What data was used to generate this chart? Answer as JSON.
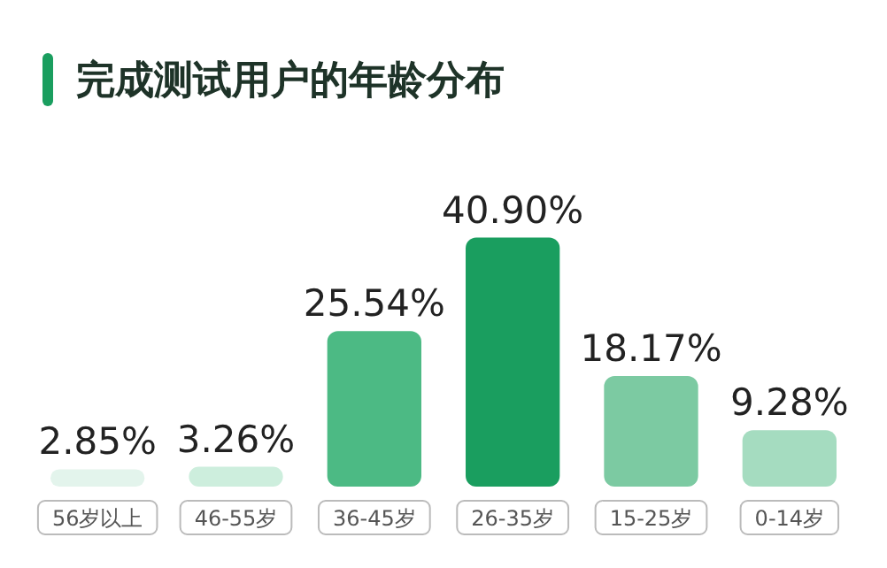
{
  "chart_data": {
    "type": "bar",
    "title": "完成测试用户的年龄分布",
    "categories": [
      "56岁以上",
      "46-55岁",
      "36-45岁",
      "26-35岁",
      "15-25岁",
      "0-14岁"
    ],
    "values": [
      2.85,
      3.26,
      25.54,
      40.9,
      18.17,
      9.28
    ],
    "colors": [
      "#e3f4ec",
      "#cdeedd",
      "#4cba84",
      "#1a9e5f",
      "#7ccaa2",
      "#a5dcc0"
    ],
    "value_labels": [
      "2.85%",
      "3.26%",
      "25.54%",
      "40.90%",
      "18.17%",
      "9.28%"
    ]
  }
}
